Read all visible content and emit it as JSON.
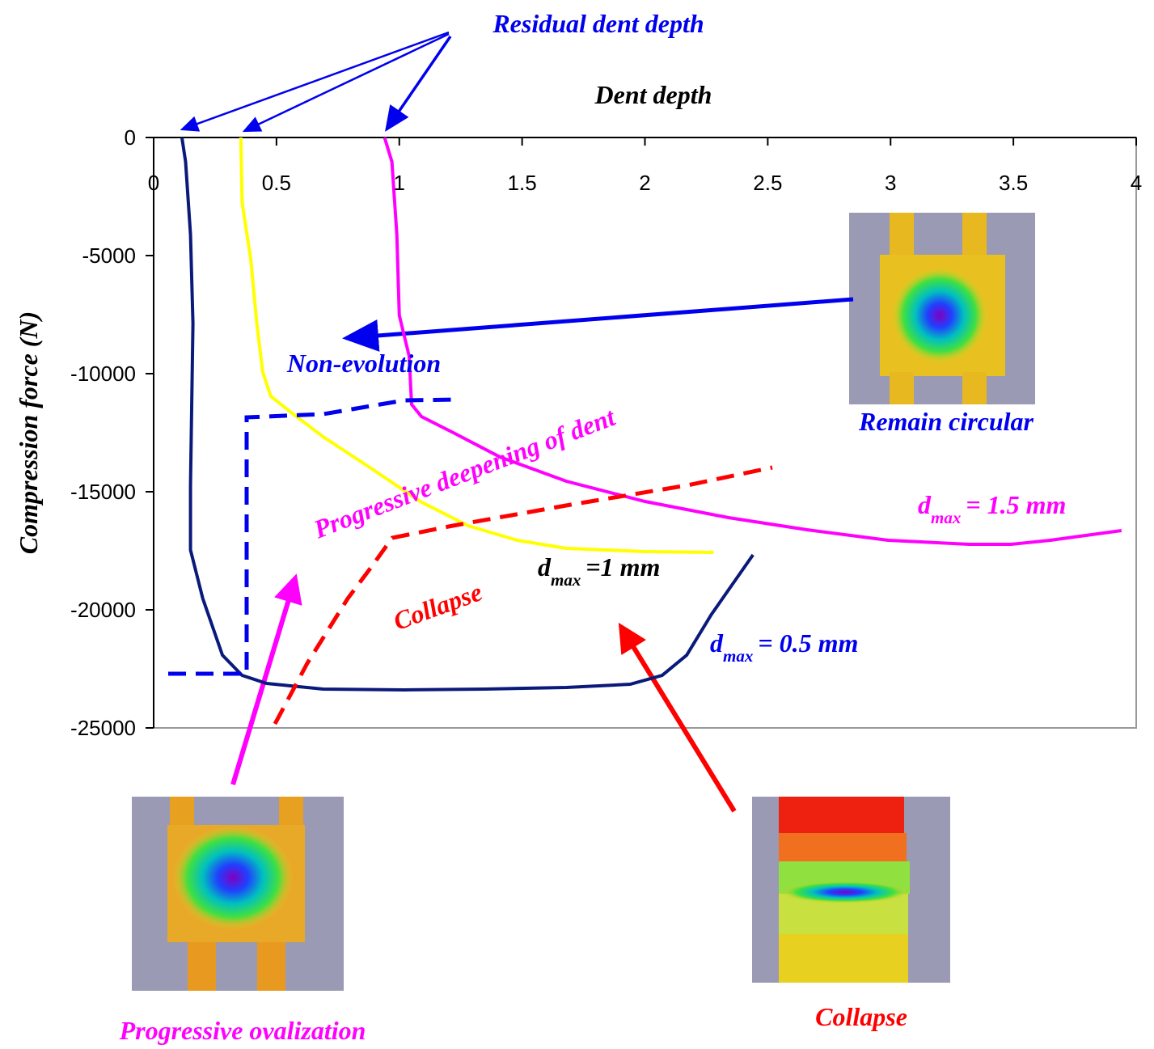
{
  "chart_data": {
    "type": "line",
    "title": "Dent depth",
    "y_label": "Compression force (N)",
    "xlim": [
      0,
      4
    ],
    "xticks": [
      0,
      0.5,
      1,
      1.5,
      2,
      2.5,
      3,
      3.5,
      4
    ],
    "ylim": [
      -25000,
      0
    ],
    "yticks": [
      0,
      -5000,
      -10000,
      -15000,
      -20000,
      -25000
    ],
    "series": [
      {
        "name_parts": [
          "d",
          "max",
          "= 0.5 mm"
        ],
        "color": "#0a1a7a",
        "x": [
          0.115,
          0.13,
          0.15,
          0.16,
          0.155,
          0.15,
          0.15,
          0.2,
          0.28,
          0.36,
          0.46,
          0.69,
          1.02,
          1.35,
          1.68,
          1.94,
          2.07,
          2.17,
          2.27,
          2.44
        ],
        "values": [
          0,
          -1027,
          -4110,
          -7877,
          -11301,
          -14726,
          -17466,
          -19521,
          -21918,
          -22774,
          -23116,
          -23356,
          -23390,
          -23356,
          -23288,
          -23151,
          -22774,
          -21918,
          -20205,
          -17671
        ]
      },
      {
        "name_parts": [
          "d",
          "max",
          "=1 mm"
        ],
        "color": "#ffff00",
        "x": [
          0.355,
          0.36,
          0.395,
          0.42,
          0.444,
          0.477,
          0.56,
          0.69,
          0.89,
          1.085,
          1.28,
          1.48,
          1.68,
          2.0,
          2.28
        ],
        "values": [
          0,
          -2740,
          -5137,
          -7877,
          -9932,
          -10959,
          -11644,
          -12671,
          -14041,
          -15411,
          -16438,
          -17055,
          -17397,
          -17534,
          -17568
        ]
      },
      {
        "name_parts": [
          "d",
          "max",
          "= 1.5 mm"
        ],
        "color": "#ff00ff",
        "x": [
          0.94,
          0.97,
          0.99,
          1.0,
          1.04,
          1.05,
          1.09,
          1.22,
          1.41,
          1.68,
          2.0,
          2.34,
          2.66,
          2.99,
          3.32,
          3.49,
          3.65,
          3.94
        ],
        "values": [
          0,
          -1027,
          -4110,
          -7534,
          -9247,
          -11301,
          -11815,
          -12500,
          -13527,
          -14555,
          -15411,
          -16096,
          -16610,
          -17055,
          -17226,
          -17226,
          -17055,
          -16644
        ]
      }
    ],
    "annotations": {
      "residual": "Residual dent depth",
      "non_evolution": "Non-evolution",
      "remain_circular": "Remain circular",
      "deepening": "Progressive deepening of dent",
      "collapse_region": "Collapse",
      "collapse_image": "Collapse",
      "ovalization": "Progressive ovalization"
    }
  }
}
